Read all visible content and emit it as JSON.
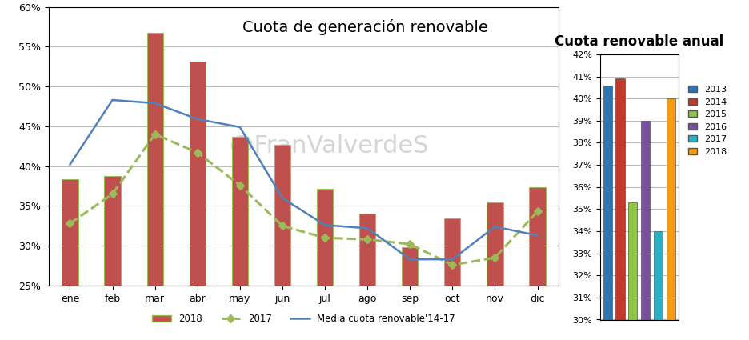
{
  "chart_data": [
    {
      "type": "bar",
      "title": "Cuota de generación renovable",
      "categories": [
        "ene",
        "feb",
        "mar",
        "abr",
        "may",
        "jun",
        "jul",
        "ago",
        "sep",
        "oct",
        "nov",
        "dic"
      ],
      "series": [
        {
          "name": "2018",
          "type": "bar",
          "color": "#c0504d",
          "values": [
            38.4,
            38.8,
            56.7,
            53.1,
            43.7,
            42.7,
            37.2,
            34.0,
            29.8,
            33.4,
            35.4,
            37.4
          ]
        },
        {
          "name": "2017",
          "type": "line",
          "color": "#9bbb59",
          "marker": "diamond",
          "line_style": "dashed",
          "values": [
            32.8,
            36.5,
            44.0,
            41.7,
            37.6,
            32.5,
            31.0,
            30.8,
            30.2,
            27.6,
            28.5,
            34.3
          ]
        },
        {
          "name": "Media cuota renovable'14-17",
          "type": "line",
          "color": "#4f81bd",
          "line_style": "solid",
          "values": [
            40.2,
            48.3,
            47.9,
            45.9,
            44.9,
            36.0,
            32.6,
            32.2,
            28.3,
            28.3,
            32.4,
            31.3
          ]
        }
      ],
      "ylim": [
        25,
        60
      ],
      "yticks": [
        {
          "value": 25,
          "label": "25%"
        },
        {
          "value": 30,
          "label": "30%"
        },
        {
          "value": 35,
          "label": "35%"
        },
        {
          "value": 40,
          "label": "40%"
        },
        {
          "value": 45,
          "label": "45%"
        },
        {
          "value": 50,
          "label": "50%"
        },
        {
          "value": 55,
          "label": "55%"
        },
        {
          "value": 60,
          "label": "60%"
        }
      ],
      "grid": true,
      "legend": "bottom",
      "annotations": [
        "@FranValverdeS"
      ]
    },
    {
      "type": "bar",
      "title": "Cuota renovable anual",
      "categories": [
        "2013",
        "2014",
        "2015",
        "2016",
        "2017",
        "2018"
      ],
      "values": [
        40.6,
        40.9,
        35.3,
        39.0,
        34.0,
        40.0
      ],
      "colors": [
        "#2e75b6",
        "#c0392b",
        "#8cc63f",
        "#7b4fa0",
        "#2ab0c5",
        "#f39c12"
      ],
      "ylim": [
        30,
        42
      ],
      "yticks": [
        {
          "value": 30,
          "label": "30%"
        },
        {
          "value": 31,
          "label": "31%"
        },
        {
          "value": 32,
          "label": "32%"
        },
        {
          "value": 33,
          "label": "33%"
        },
        {
          "value": 34,
          "label": "34%"
        },
        {
          "value": 35,
          "label": "35%"
        },
        {
          "value": 36,
          "label": "36%"
        },
        {
          "value": 37,
          "label": "37%"
        },
        {
          "value": 38,
          "label": "38%"
        },
        {
          "value": 39,
          "label": "39%"
        },
        {
          "value": 40,
          "label": "40%"
        },
        {
          "value": 41,
          "label": "41%"
        },
        {
          "value": 42,
          "label": "42%"
        }
      ],
      "grid": true,
      "legend": "right",
      "tick_labels": "y"
    }
  ]
}
